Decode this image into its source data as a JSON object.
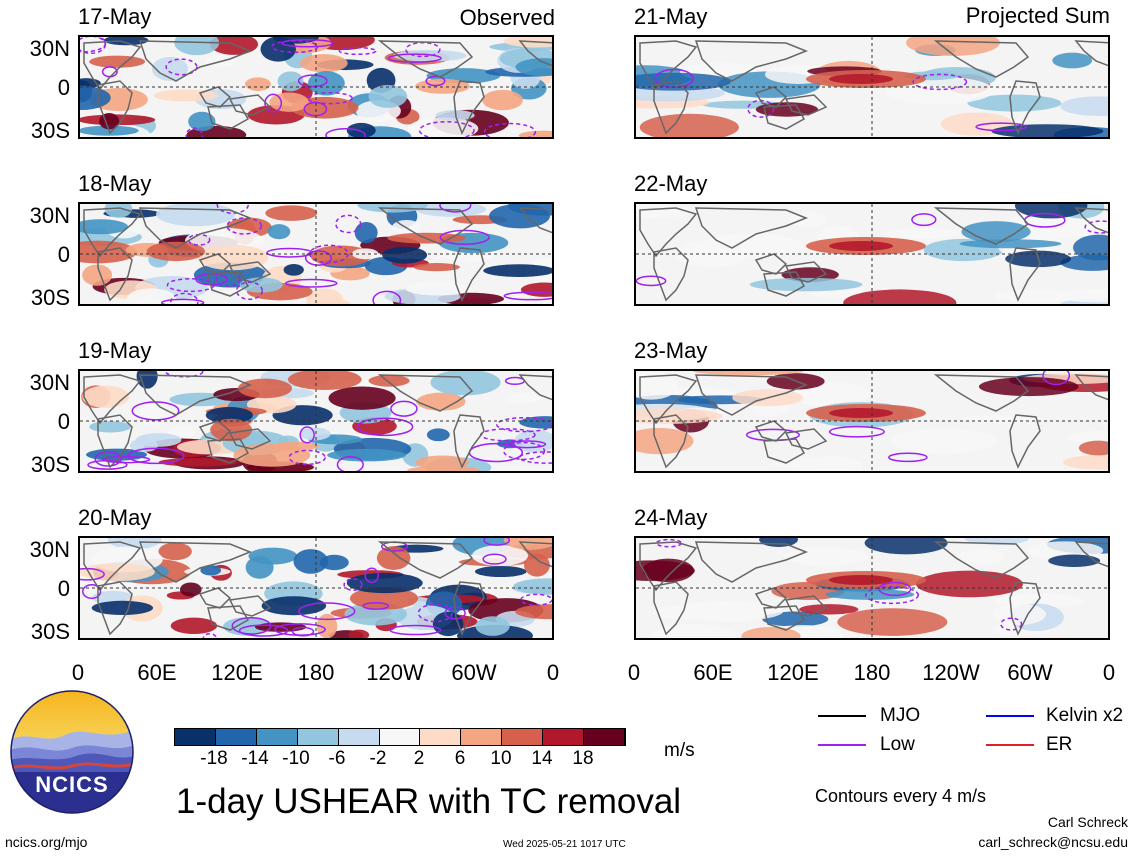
{
  "header": {
    "left_title": "Observed",
    "right_title": "Projected Sum"
  },
  "panels": [
    {
      "date": "17-May",
      "column": "observed"
    },
    {
      "date": "18-May",
      "column": "observed"
    },
    {
      "date": "19-May",
      "column": "observed"
    },
    {
      "date": "20-May",
      "column": "observed"
    },
    {
      "date": "21-May",
      "column": "projected"
    },
    {
      "date": "22-May",
      "column": "projected"
    },
    {
      "date": "23-May",
      "column": "projected"
    },
    {
      "date": "24-May",
      "column": "projected"
    }
  ],
  "axes": {
    "lat_ticks": [
      "30N",
      "0",
      "30S"
    ],
    "lon_ticks": [
      "0",
      "60E",
      "120E",
      "180",
      "120W",
      "60W",
      "0"
    ]
  },
  "colorbar": {
    "unit": "m/s",
    "tick_labels": [
      "-18",
      "-14",
      "-10",
      "-6",
      "-2",
      "2",
      "6",
      "10",
      "14",
      "18"
    ],
    "colors": [
      "#08306b",
      "#2166ac",
      "#4393c3",
      "#92c5de",
      "#c6dbef",
      "#f7f7f7",
      "#fddbc7",
      "#f4a582",
      "#d6604d",
      "#b2182b",
      "#67001f"
    ]
  },
  "legend": {
    "items": [
      {
        "label": "MJO",
        "color": "#000000"
      },
      {
        "label": "Kelvin x2",
        "color": "#0000ff"
      },
      {
        "label": "Low",
        "color": "#a020f0"
      },
      {
        "label": "ER",
        "color": "#e02020"
      }
    ],
    "contours_note": "Contours every 4 m/s"
  },
  "logo": {
    "text": "NCICS"
  },
  "main_title": "1-day USHEAR with TC removal",
  "footer": {
    "url": "ncics.org/mjo",
    "timestamp": "Wed 2025-05-21 1017 UTC",
    "author": "Carl Schreck",
    "email": "carl_schreck@ncsu.edu"
  }
}
